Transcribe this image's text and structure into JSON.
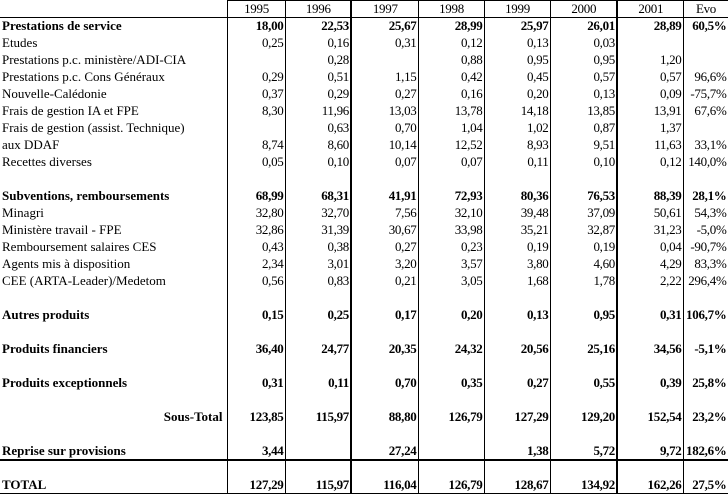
{
  "columns": [
    "1995",
    "1996",
    "1997",
    "1998",
    "1999",
    "2000",
    "2001",
    "Evo"
  ],
  "rows": [
    {
      "label": "Prestations de service",
      "bold": true,
      "values": [
        "18,00",
        "22,53",
        "25,67",
        "28,99",
        "25,97",
        "26,01",
        "28,89",
        "60,5%"
      ]
    },
    {
      "label": "Etudes",
      "values": [
        "0,25",
        "0,16",
        "0,31",
        "0,12",
        "0,13",
        "0,03",
        "",
        ""
      ]
    },
    {
      "label": "Prestations p.c. ministère/ADI-CIA",
      "values": [
        "",
        "0,28",
        "",
        "0,88",
        "0,95",
        "0,95",
        "1,20",
        ""
      ]
    },
    {
      "label": "Prestations p.c. Cons Généraux",
      "values": [
        "0,29",
        "0,51",
        "1,15",
        "0,42",
        "0,45",
        "0,57",
        "0,57",
        "96,6%"
      ]
    },
    {
      "label": "Nouvelle-Calédonie",
      "values": [
        "0,37",
        "0,29",
        "0,27",
        "0,16",
        "0,20",
        "0,13",
        "0,09",
        "-75,7%"
      ]
    },
    {
      "label": "Frais de gestion IA et FPE",
      "values": [
        "8,30",
        "11,96",
        "13,03",
        "13,78",
        "14,18",
        "13,85",
        "13,91",
        "67,6%"
      ]
    },
    {
      "label": "Frais de gestion (assist. Technique)",
      "values": [
        "",
        "0,63",
        "0,70",
        "1,04",
        "1,02",
        "0,87",
        "1,37",
        ""
      ]
    },
    {
      "label": "aux DDAF",
      "values": [
        "8,74",
        "8,60",
        "10,14",
        "12,52",
        "8,93",
        "9,51",
        "11,63",
        "33,1%"
      ]
    },
    {
      "label": "Recettes diverses",
      "values": [
        "0,05",
        "0,10",
        "0,07",
        "0,07",
        "0,11",
        "0,10",
        "0,12",
        "140,0%"
      ]
    },
    {
      "blank": true
    },
    {
      "label": "Subventions, remboursements",
      "bold": true,
      "values": [
        "68,99",
        "68,31",
        "41,91",
        "72,93",
        "80,36",
        "76,53",
        "88,39",
        "28,1%"
      ]
    },
    {
      "label": "Minagri",
      "values": [
        "32,80",
        "32,70",
        "7,56",
        "32,10",
        "39,48",
        "37,09",
        "50,61",
        "54,3%"
      ]
    },
    {
      "label": "Ministère travail - FPE",
      "values": [
        "32,86",
        "31,39",
        "30,67",
        "33,98",
        "35,21",
        "32,87",
        "31,23",
        "-5,0%"
      ]
    },
    {
      "label": "Remboursement salaires CES",
      "values": [
        "0,43",
        "0,38",
        "0,27",
        "0,23",
        "0,19",
        "0,19",
        "0,04",
        "-90,7%"
      ]
    },
    {
      "label": "Agents mis à disposition",
      "values": [
        "2,34",
        "3,01",
        "3,20",
        "3,57",
        "3,80",
        "4,60",
        "4,29",
        "83,3%"
      ]
    },
    {
      "label": "CEE (ARTA-Leader)/Medetom",
      "values": [
        "0,56",
        "0,83",
        "0,21",
        "3,05",
        "1,68",
        "1,78",
        "2,22",
        "296,4%"
      ]
    },
    {
      "blank": true
    },
    {
      "label": "Autres produits",
      "bold": true,
      "values": [
        "0,15",
        "0,25",
        "0,17",
        "0,20",
        "0,13",
        "0,95",
        "0,31",
        "106,7%"
      ]
    },
    {
      "blank": true
    },
    {
      "label": "Produits financiers",
      "bold": true,
      "values": [
        "36,40",
        "24,77",
        "20,35",
        "24,32",
        "20,56",
        "25,16",
        "34,56",
        "-5,1%"
      ]
    },
    {
      "blank": true
    },
    {
      "label": "Produits exceptionnels",
      "bold": true,
      "values": [
        "0,31",
        "0,11",
        "0,70",
        "0,35",
        "0,27",
        "0,55",
        "0,39",
        "25,8%"
      ]
    },
    {
      "blank": true
    },
    {
      "label": "Sous-Total",
      "bold": true,
      "right": true,
      "values": [
        "123,85",
        "115,97",
        "88,80",
        "126,79",
        "127,29",
        "129,20",
        "152,54",
        "23,2%"
      ]
    },
    {
      "blank": true
    },
    {
      "label": "Reprise sur provisions",
      "bold": true,
      "values": [
        "3,44",
        "",
        "27,24",
        "",
        "1,38",
        "5,72",
        "9,72",
        "182,6%"
      ]
    },
    {
      "blank": true,
      "sep": true
    },
    {
      "label": "TOTAL",
      "bold": true,
      "last": true,
      "values": [
        "127,29",
        "115,97",
        "116,04",
        "126,79",
        "128,67",
        "134,92",
        "162,26",
        "27,5%"
      ]
    }
  ]
}
